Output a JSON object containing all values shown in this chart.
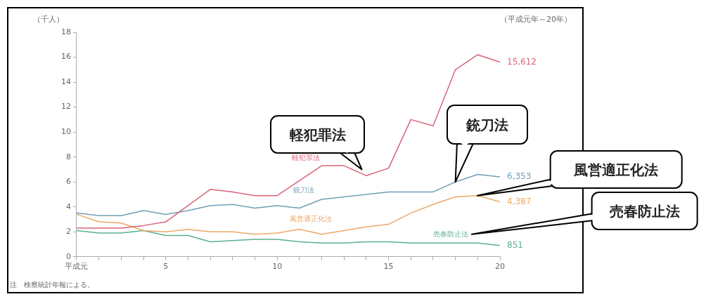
{
  "chart_data": {
    "type": "line",
    "subtitle": "（平成元年～20年）",
    "ylabel": "（千人）",
    "x": [
      1,
      2,
      3,
      4,
      5,
      6,
      7,
      8,
      9,
      10,
      11,
      12,
      13,
      14,
      15,
      16,
      17,
      18,
      19,
      20
    ],
    "xlim": [
      1,
      20
    ],
    "xticks": [
      {
        "value": 1,
        "label": "平成元"
      },
      {
        "value": 2,
        "label": null
      },
      {
        "value": 3,
        "label": null
      },
      {
        "value": 4,
        "label": null
      },
      5,
      {
        "value": 6,
        "label": null
      },
      {
        "value": 7,
        "label": null
      },
      {
        "value": 8,
        "label": null
      },
      {
        "value": 9,
        "label": null
      },
      10,
      {
        "value": 11,
        "label": null
      },
      {
        "value": 12,
        "label": null
      },
      {
        "value": 13,
        "label": null
      },
      {
        "value": 14,
        "label": null
      },
      15,
      {
        "value": 16,
        "label": null
      },
      {
        "value": 17,
        "label": null
      },
      {
        "value": 18,
        "label": null
      },
      {
        "value": 19,
        "label": null
      },
      20
    ],
    "ylim": [
      0,
      18
    ],
    "yticks": [
      0,
      2,
      4,
      6,
      8,
      10,
      12,
      14,
      16,
      18
    ],
    "grid": false,
    "legend": false,
    "marker": "none",
    "line_style": "solid",
    "series": [
      {
        "name": "軽犯罪法",
        "color": "#d9637a",
        "values": [
          2.3,
          2.3,
          2.3,
          2.5,
          2.8,
          4.1,
          5.4,
          5.2,
          4.9,
          4.9,
          6.1,
          7.3,
          7.3,
          6.5,
          7.1,
          11.0,
          10.5,
          15.0,
          16.2,
          15.6
        ]
      },
      {
        "name": "銃刀法",
        "color": "#6f9fb5",
        "values": [
          3.5,
          3.3,
          3.3,
          3.7,
          3.4,
          3.7,
          4.1,
          4.2,
          3.9,
          4.1,
          3.9,
          4.6,
          4.8,
          5.0,
          5.2,
          5.2,
          5.2,
          6.0,
          6.6,
          6.4
        ]
      },
      {
        "name": "風営適正化法",
        "color": "#eda965",
        "values": [
          3.4,
          2.8,
          2.7,
          2.1,
          2.0,
          2.2,
          2.0,
          2.0,
          1.8,
          1.9,
          2.2,
          1.8,
          2.1,
          2.4,
          2.6,
          3.5,
          4.2,
          4.8,
          4.9,
          4.4
        ]
      },
      {
        "name": "売春防止法",
        "color": "#5bb08f",
        "values": [
          2.1,
          1.9,
          1.9,
          2.1,
          1.7,
          1.7,
          1.2,
          1.3,
          1.4,
          1.4,
          1.2,
          1.1,
          1.1,
          1.2,
          1.2,
          1.1,
          1.1,
          1.1,
          1.1,
          0.9
        ]
      }
    ],
    "annotations": [
      "注　検察統計年報による。",
      "15,612",
      "6,353",
      "4,387",
      "851",
      "軽犯罪法",
      "銃刀法",
      "風営適正化法",
      "売春防止法"
    ]
  }
}
